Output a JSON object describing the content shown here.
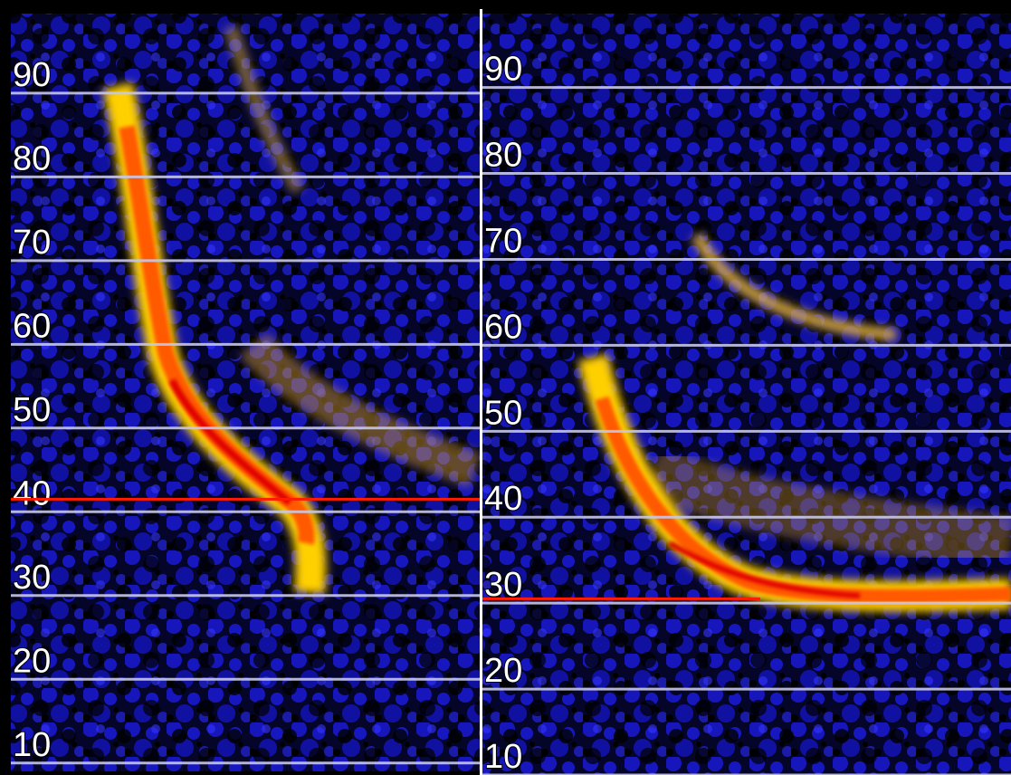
{
  "chart_data": [
    {
      "type": "spectrogram",
      "ylim": [
        9,
        99.5
      ],
      "yticks": [
        10,
        20,
        30,
        40,
        50,
        60,
        70,
        80,
        90
      ],
      "grid": true,
      "reference_line": {
        "value": 41.5,
        "color": "#ff1a00"
      }
    },
    {
      "type": "spectrogram",
      "ylim": [
        10,
        98.6
      ],
      "yticks": [
        10,
        20,
        30,
        40,
        50,
        60,
        70,
        80,
        90
      ],
      "grid": true,
      "reference_line": {
        "value": 30.5,
        "color": "#ff1a00"
      }
    }
  ]
}
